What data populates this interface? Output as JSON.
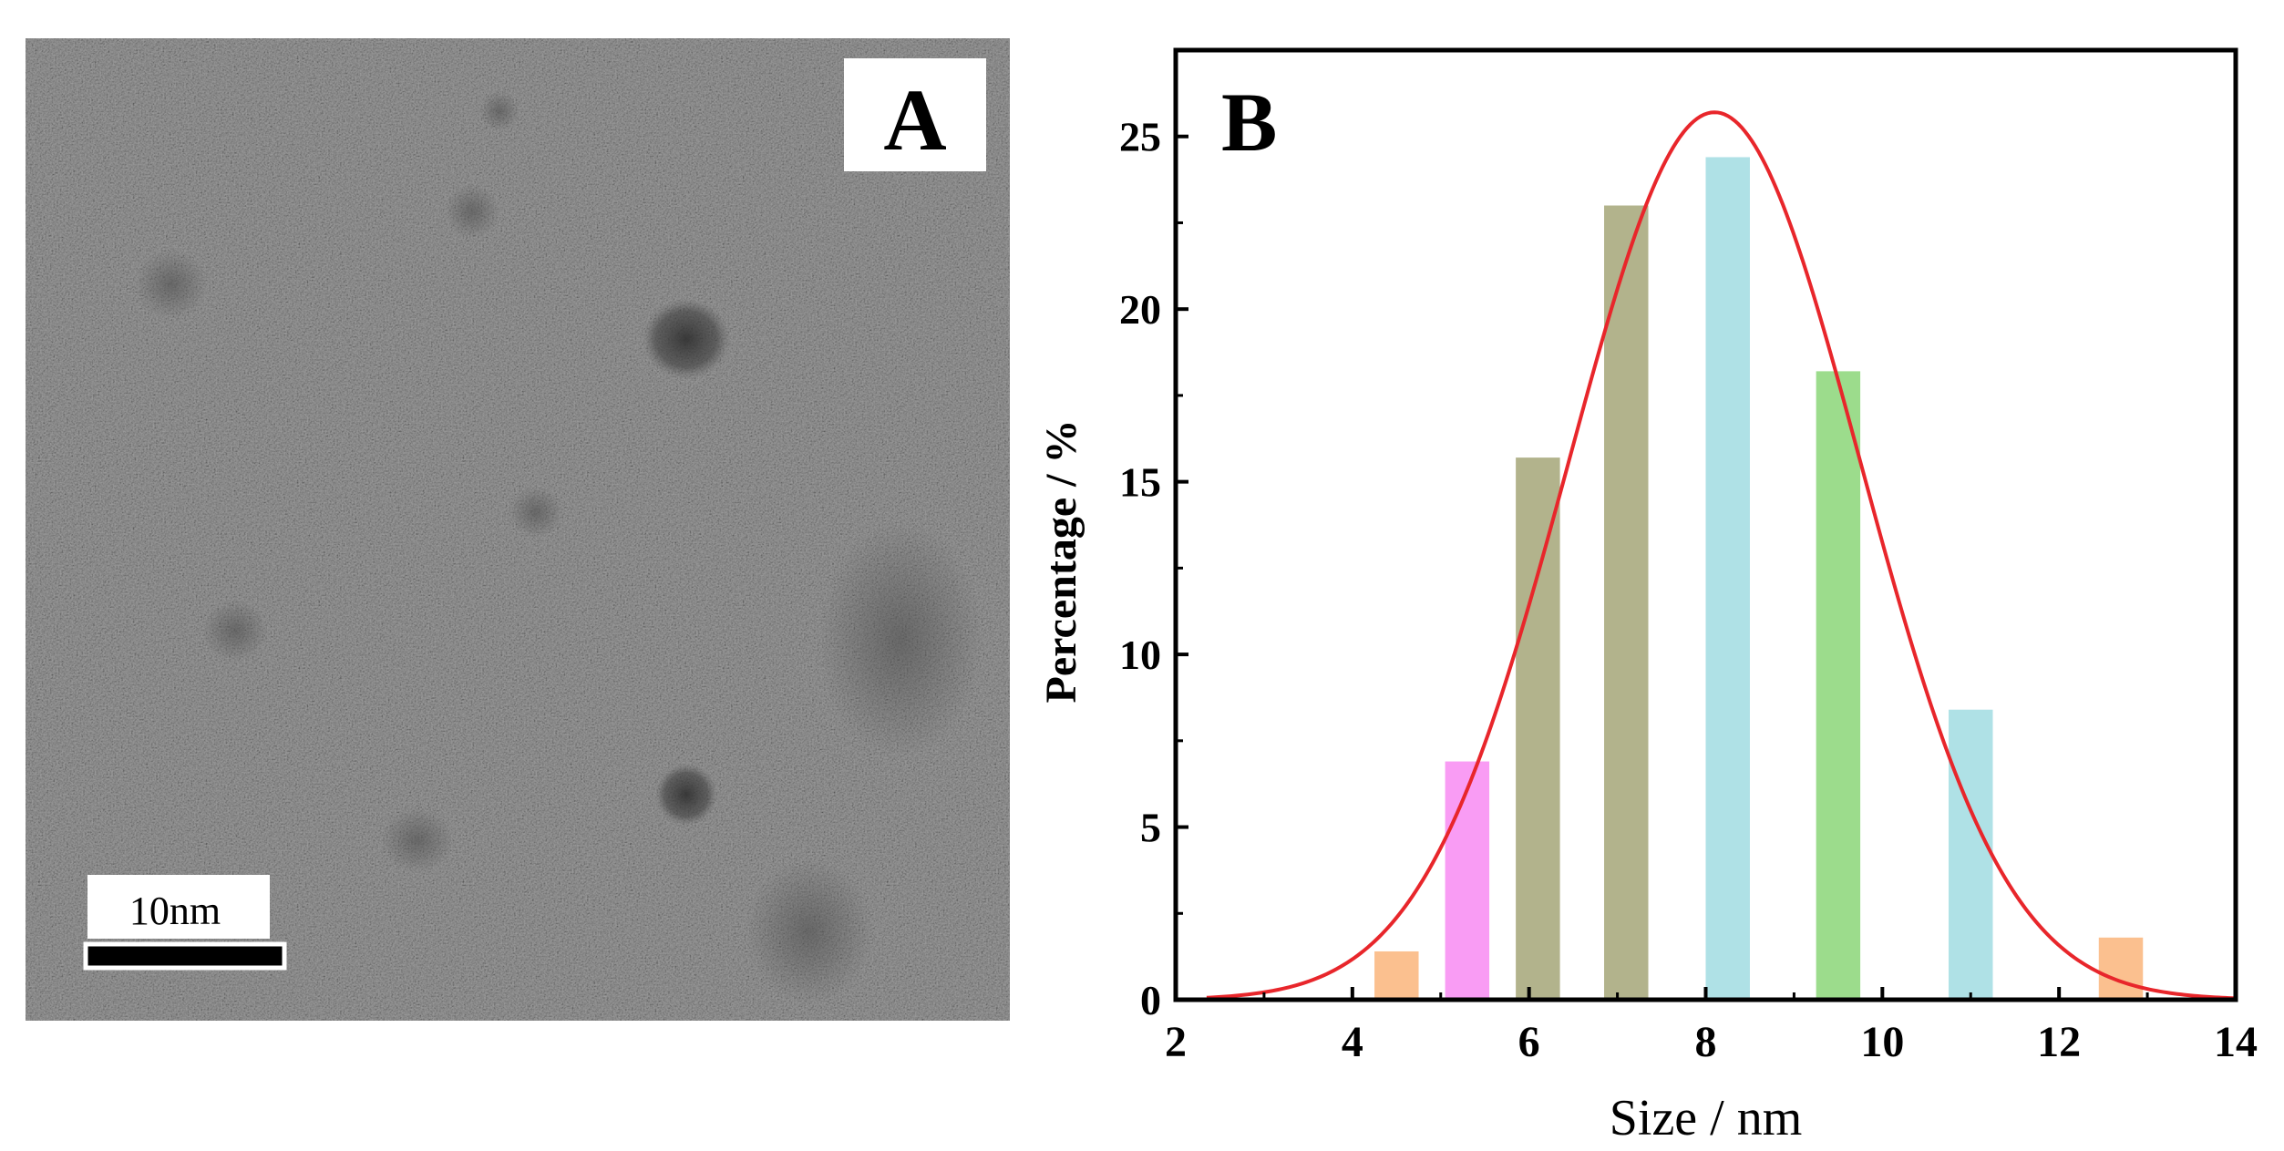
{
  "panel_a": {
    "label": "A",
    "scale_bar_text": "10nm",
    "image_description_icon": "tem-micrograph-icon",
    "background_color": "#8c8c8c"
  },
  "panel_b": {
    "label": "B"
  },
  "chart_data": {
    "type": "bar",
    "title": "",
    "xlabel": "Size / nm",
    "ylabel": "Percentage / %",
    "xlim": [
      2,
      14
    ],
    "ylim": [
      0,
      27.5
    ],
    "xticks": [
      2,
      4,
      6,
      8,
      10,
      12,
      14
    ],
    "yticks": [
      0,
      5,
      10,
      15,
      20,
      25
    ],
    "bar_width": 0.5,
    "bars": [
      {
        "x": 4.5,
        "value": 1.4,
        "color": "#fbc08f"
      },
      {
        "x": 5.3,
        "value": 6.9,
        "color": "#f99cf4"
      },
      {
        "x": 6.1,
        "value": 15.7,
        "color": "#b2b38c"
      },
      {
        "x": 7.1,
        "value": 23.0,
        "color": "#b2b38c"
      },
      {
        "x": 8.25,
        "value": 24.4,
        "color": "#afe1e6"
      },
      {
        "x": 9.5,
        "value": 18.2,
        "color": "#9cdc8c"
      },
      {
        "x": 11.0,
        "value": 8.4,
        "color": "#afe1e6"
      },
      {
        "x": 12.7,
        "value": 1.8,
        "color": "#fbc08f"
      }
    ],
    "fit": {
      "type": "gaussian",
      "amplitude": 25.7,
      "center": 8.1,
      "sigma": 1.65,
      "color": "#e8262b"
    },
    "grid": false,
    "legend": "none"
  }
}
